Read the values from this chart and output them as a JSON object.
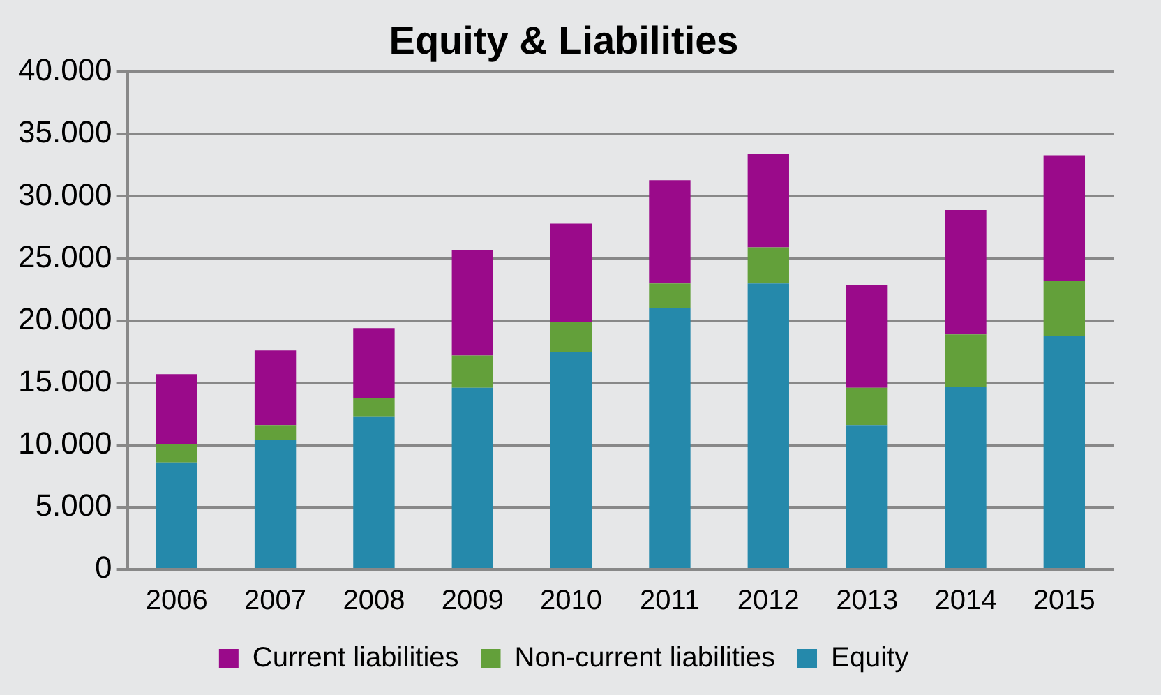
{
  "chart_data": {
    "type": "bar",
    "title": "Equity & Liabilities",
    "stacked": true,
    "grid": "y",
    "legend": "bottom",
    "categories": [
      "2006",
      "2007",
      "2008",
      "2009",
      "2010",
      "2011",
      "2012",
      "2013",
      "2014",
      "2015"
    ],
    "series": [
      {
        "name": "Equity",
        "color": "#2589ab",
        "values": [
          8600,
          10400,
          12300,
          14600,
          17500,
          21000,
          23000,
          11600,
          14700,
          18800
        ]
      },
      {
        "name": "Non-current liabilities",
        "color": "#63a03a",
        "values": [
          1500,
          1200,
          1500,
          2600,
          2400,
          2000,
          2900,
          3000,
          4200,
          4400
        ]
      },
      {
        "name": "Current liabilities",
        "color": "#9a0a8a",
        "values": [
          5600,
          6000,
          5600,
          8500,
          7900,
          8300,
          7500,
          8300,
          10000,
          10100
        ]
      }
    ],
    "ylim": [
      0,
      40000
    ],
    "yticks": [
      {
        "value": 0,
        "label": "0"
      },
      {
        "value": 5000,
        "label": "5.000"
      },
      {
        "value": 10000,
        "label": "10.000"
      },
      {
        "value": 15000,
        "label": "15.000"
      },
      {
        "value": 20000,
        "label": "20.000"
      },
      {
        "value": 25000,
        "label": "25.000"
      },
      {
        "value": 30000,
        "label": "30.000"
      },
      {
        "value": 35000,
        "label": "35.000"
      },
      {
        "value": 40000,
        "label": "40.000"
      }
    ]
  }
}
